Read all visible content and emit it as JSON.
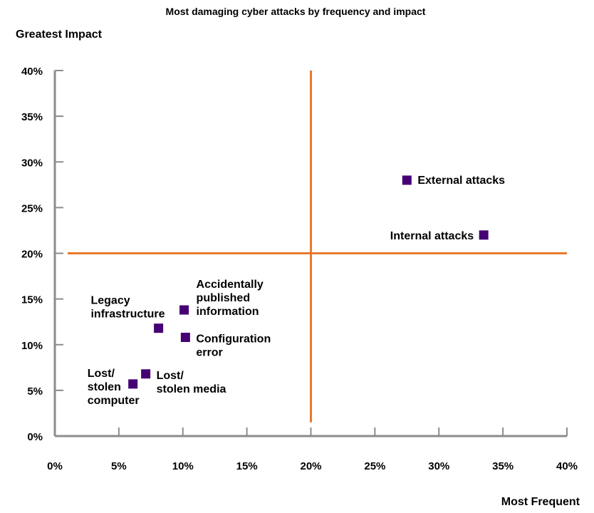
{
  "chart_data": {
    "type": "scatter",
    "title": "Most damaging cyber attacks by frequency and impact",
    "xlabel": "Most Frequent",
    "ylabel": "Greatest Impact",
    "xlim": [
      0,
      40
    ],
    "ylim": [
      0,
      40
    ],
    "x_ticks": [
      "0%",
      "5%",
      "10%",
      "15%",
      "20%",
      "25%",
      "30%",
      "35%",
      "40%"
    ],
    "y_ticks": [
      "0%",
      "5%",
      "10%",
      "15%",
      "20%",
      "25%",
      "30%",
      "35%",
      "40%"
    ],
    "quadrant_lines": {
      "x": 20,
      "y": 20,
      "color": "#E8782C"
    },
    "marker_color": "#460073",
    "grid": false,
    "points": [
      {
        "label": [
          "External attacks"
        ],
        "x": 27.5,
        "y": 28.0
      },
      {
        "label": [
          "Internal attacks"
        ],
        "x": 33.5,
        "y": 22.0
      },
      {
        "label": [
          "Accidentally",
          "published",
          "information"
        ],
        "x": 10.1,
        "y": 13.8
      },
      {
        "label": [
          "Legacy",
          "infrastructure"
        ],
        "x": 8.1,
        "y": 11.8
      },
      {
        "label": [
          "Configuration",
          "error"
        ],
        "x": 10.2,
        "y": 10.8
      },
      {
        "label": [
          "Lost/",
          "stolen media"
        ],
        "x": 7.1,
        "y": 6.8
      },
      {
        "label": [
          "Lost/",
          "stolen",
          "computer"
        ],
        "x": 6.1,
        "y": 5.7
      }
    ]
  }
}
